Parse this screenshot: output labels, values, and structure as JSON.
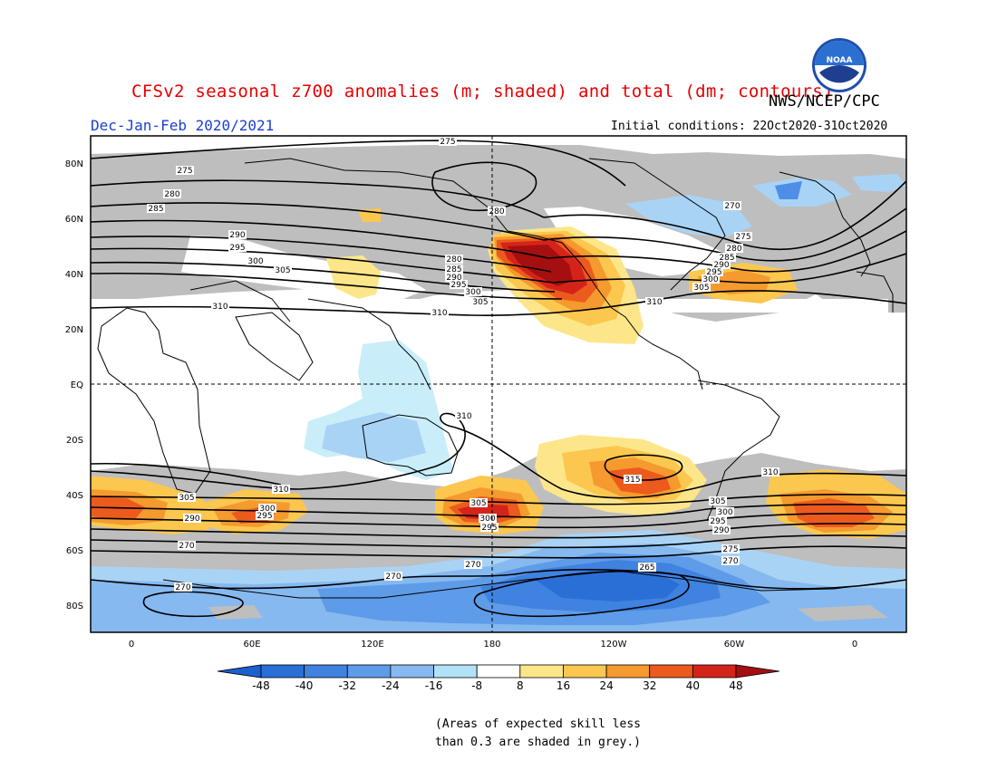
{
  "header": {
    "title": "CFSv2 seasonal z700 anomalies (m; shaded) and total (dm; contours)",
    "organization": "NWS/NCEP/CPC",
    "logo_text": "NOAA",
    "season": "Dec-Jan-Feb 2020/2021",
    "initial_conditions": "Initial conditions: 22Oct2020-31Oct2020"
  },
  "map": {
    "lat_ticks": [
      "80N",
      "60N",
      "40N",
      "20N",
      "EQ",
      "20S",
      "40S",
      "60S",
      "80S"
    ],
    "lon_ticks": [
      "0",
      "60E",
      "120E",
      "180",
      "120W",
      "60W",
      "0"
    ],
    "contour_labels": [
      "275",
      "280",
      "285",
      "290",
      "295",
      "300",
      "305",
      "310",
      "315",
      "270",
      "265"
    ],
    "colors": {
      "skill_grey": "#bebebe",
      "neg_strong": "#2a6fd6",
      "neg_mid": "#4f8ee6",
      "neg_light": "#7fb2f0",
      "neg_pale": "#a9d3f5",
      "neg_faint": "#c9eefa",
      "pos_faint": "#fde68a",
      "pos_light": "#fbc74f",
      "pos_mid": "#f59a2e",
      "pos_strong": "#ec5a1e",
      "pos_deep": "#d4241a",
      "pos_max": "#a50f0f"
    }
  },
  "colorbar": {
    "labels": [
      "-48",
      "-40",
      "-32",
      "-24",
      "-16",
      "-8",
      "8",
      "16",
      "24",
      "32",
      "40",
      "48"
    ],
    "colors": [
      "#1c5fcf",
      "#2a6fd6",
      "#3f82e0",
      "#5e9be8",
      "#86b9f0",
      "#b3e1f7",
      "#ffffff",
      "#fde68a",
      "#fbc74f",
      "#f59a2e",
      "#ec5a1e",
      "#d4241a",
      "#a50f0f"
    ]
  },
  "note": {
    "line1": "(Areas of expected skill less",
    "line2": "than 0.3 are shaded in grey.)"
  }
}
